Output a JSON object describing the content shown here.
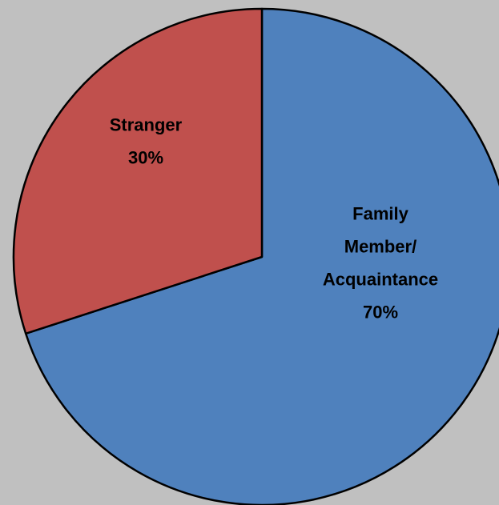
{
  "chart_data": {
    "type": "pie",
    "title": "",
    "start_angle_deg": 0,
    "direction": "clockwise",
    "slices": [
      {
        "label_lines": [
          "Family",
          "Member/",
          "Acquaintance"
        ],
        "percent_label": "70%",
        "value": 70,
        "color": "#4f81bd"
      },
      {
        "label_lines": [
          "Stranger"
        ],
        "percent_label": "30%",
        "value": 30,
        "color": "#c0504d"
      }
    ]
  },
  "colors": {
    "background": "#c0c0c0",
    "outline": "#000000"
  }
}
